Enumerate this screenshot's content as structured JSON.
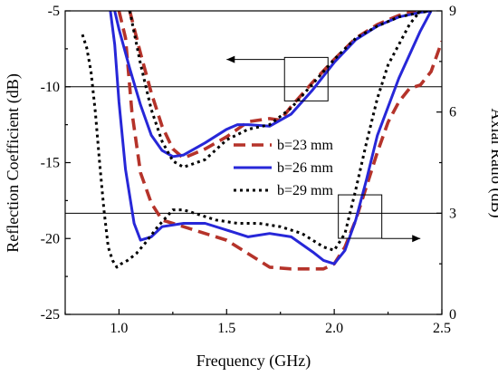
{
  "chart_data": {
    "type": "line",
    "xlabel": "Frequency (GHz)",
    "ylabel_left": "Reflection Coefficient (dB)",
    "ylabel_right": "Axial Ratio (dB)",
    "xlim": [
      0.75,
      2.5
    ],
    "ylim_left": [
      -25,
      -5
    ],
    "ylim_right": [
      0,
      9
    ],
    "x_ticks": [
      1.0,
      1.5,
      2.0,
      2.5
    ],
    "x_tick_labels": [
      "1.0",
      "1.5",
      "2.0",
      "2.5"
    ],
    "y_left_ticks": [
      -25,
      -20,
      -15,
      -10,
      -5
    ],
    "y_left_tick_labels": [
      "-25",
      "-20",
      "-15",
      "-10",
      "-5"
    ],
    "y_right_ticks": [
      0,
      3,
      6,
      9
    ],
    "y_right_tick_labels": [
      "0",
      "3",
      "6",
      "9"
    ],
    "grid": false,
    "legend_position": "center",
    "reference_lines": [
      {
        "axis": "left",
        "y": -10
      },
      {
        "axis": "right",
        "y": 3
      }
    ],
    "annotations": [
      {
        "type": "box-arrow",
        "target": "left",
        "box_center": [
          1.87,
          -9.5
        ],
        "arrow_to_x": 1.5,
        "arrow_y": -8.2
      },
      {
        "type": "box-arrow",
        "target": "right",
        "box_center": [
          2.12,
          2.9
        ],
        "arrow_to_x": 2.4,
        "arrow_y": 2.25
      }
    ],
    "series": [
      {
        "name": "b=23 mm",
        "color": "#b5332a",
        "style": "dashed",
        "reflection": {
          "x": [
            1.05,
            1.1,
            1.15,
            1.2,
            1.25,
            1.3,
            1.4,
            1.5,
            1.6,
            1.7,
            1.75,
            1.8,
            1.9,
            2.0,
            2.1,
            2.2,
            2.3,
            2.38
          ],
          "y": [
            -5,
            -7.8,
            -10.4,
            -12.6,
            -14.1,
            -14.7,
            -14.1,
            -13.3,
            -12.3,
            -12.1,
            -12.2,
            -11.3,
            -9.7,
            -8.2,
            -6.8,
            -5.9,
            -5.3,
            -5
          ]
        },
        "axial_ratio": {
          "x": [
            1.0,
            1.03,
            1.06,
            1.1,
            1.15,
            1.2,
            1.3,
            1.4,
            1.5,
            1.6,
            1.7,
            1.8,
            1.9,
            1.95,
            2.0,
            2.05,
            2.1,
            2.15,
            2.2,
            2.25,
            2.3,
            2.35,
            2.4,
            2.45,
            2.5
          ],
          "y": [
            9,
            8.2,
            6.0,
            4.2,
            3.3,
            2.8,
            2.6,
            2.4,
            2.2,
            1.8,
            1.4,
            1.35,
            1.35,
            1.35,
            1.5,
            2.0,
            2.8,
            3.8,
            4.8,
            5.7,
            6.3,
            6.7,
            6.8,
            7.2,
            8.1
          ]
        }
      },
      {
        "name": "b=26 mm",
        "color": "#2727d8",
        "style": "solid",
        "reflection": {
          "x": [
            0.98,
            1.0,
            1.05,
            1.1,
            1.15,
            1.2,
            1.25,
            1.3,
            1.4,
            1.5,
            1.55,
            1.6,
            1.7,
            1.8,
            1.9,
            2.0,
            2.1,
            2.2,
            2.3,
            2.4,
            2.45
          ],
          "y": [
            -5,
            -6.2,
            -8.8,
            -11.2,
            -13.2,
            -14.2,
            -14.6,
            -14.5,
            -13.7,
            -12.8,
            -12.5,
            -12.5,
            -12.6,
            -11.8,
            -10.2,
            -8.4,
            -6.9,
            -6.0,
            -5.4,
            -5.1,
            -5
          ]
        },
        "axial_ratio": {
          "x": [
            0.96,
            0.98,
            1.0,
            1.03,
            1.07,
            1.1,
            1.15,
            1.2,
            1.3,
            1.4,
            1.5,
            1.6,
            1.7,
            1.8,
            1.9,
            1.95,
            2.0,
            2.05,
            2.1,
            2.15,
            2.2,
            2.3,
            2.4,
            2.45
          ],
          "y": [
            9,
            8.0,
            6.3,
            4.3,
            2.7,
            2.2,
            2.3,
            2.6,
            2.7,
            2.7,
            2.5,
            2.3,
            2.4,
            2.3,
            1.85,
            1.6,
            1.5,
            1.9,
            2.8,
            4.0,
            5.3,
            7.0,
            8.4,
            9
          ]
        }
      },
      {
        "name": "b=29 mm",
        "color": "#000000",
        "style": "dotted",
        "reflection": {
          "x": [
            1.05,
            1.1,
            1.15,
            1.2,
            1.25,
            1.3,
            1.4,
            1.5,
            1.6,
            1.7,
            1.8,
            1.9,
            2.0,
            2.1,
            2.2,
            2.3,
            2.4,
            2.45
          ],
          "y": [
            -5,
            -8.5,
            -11.5,
            -13.6,
            -14.9,
            -15.3,
            -14.8,
            -13.5,
            -12.8,
            -12.5,
            -11.4,
            -9.8,
            -8.2,
            -6.8,
            -6.0,
            -5.4,
            -5.1,
            -5
          ]
        },
        "axial_ratio": {
          "x": [
            0.83,
            0.85,
            0.87,
            0.89,
            0.91,
            0.93,
            0.95,
            0.97,
            0.99,
            1.01,
            1.04,
            1.08,
            1.12,
            1.18,
            1.25,
            1.3,
            1.35,
            1.45,
            1.55,
            1.65,
            1.75,
            1.85,
            1.95,
            2.0,
            2.05,
            2.1,
            2.15,
            2.2,
            2.25,
            2.3,
            2.35,
            2.4,
            2.45
          ],
          "y": [
            8.3,
            7.9,
            7.2,
            6.0,
            4.5,
            3.1,
            2.0,
            1.6,
            1.4,
            1.5,
            1.6,
            1.8,
            2.1,
            2.6,
            3.1,
            3.1,
            3.0,
            2.8,
            2.7,
            2.7,
            2.6,
            2.4,
            2.0,
            1.9,
            2.4,
            3.7,
            5.1,
            6.4,
            7.4,
            8.0,
            8.6,
            9,
            9
          ]
        }
      }
    ]
  }
}
